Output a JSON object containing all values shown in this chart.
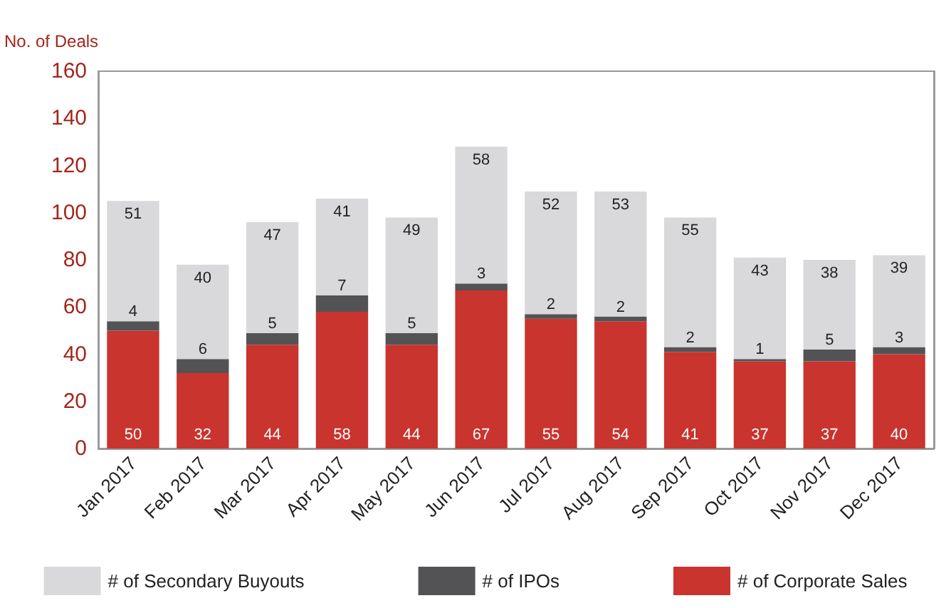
{
  "chart_data": {
    "type": "bar",
    "ylabel": "No. of Deals",
    "stacked": true,
    "data_labels": true,
    "legend": "bottom",
    "grid": false,
    "categories": [
      "Jan 2017",
      "Feb 2017",
      "Mar 2017",
      "Apr 2017",
      "May 2017",
      "Jun 2017",
      "Jul 2017",
      "Aug 2017",
      "Sep 2017",
      "Oct 2017",
      "Nov 2017",
      "Dec 2017"
    ],
    "series": [
      {
        "name": "# of Corporate Sales",
        "color": "#c9342e",
        "values": [
          50,
          32,
          44,
          58,
          44,
          67,
          55,
          54,
          41,
          37,
          37,
          40
        ]
      },
      {
        "name": "# of IPOs",
        "color": "#535356",
        "values": [
          4,
          6,
          5,
          7,
          5,
          3,
          2,
          2,
          2,
          1,
          5,
          3
        ]
      },
      {
        "name": "# of Secondary Buyouts",
        "color": "#d9d9db",
        "values": [
          51,
          40,
          47,
          41,
          49,
          58,
          52,
          53,
          55,
          43,
          38,
          39
        ]
      }
    ],
    "ylim": [
      0,
      160
    ],
    "yticks": [
      0,
      20,
      40,
      60,
      80,
      100,
      120,
      140,
      160
    ]
  }
}
